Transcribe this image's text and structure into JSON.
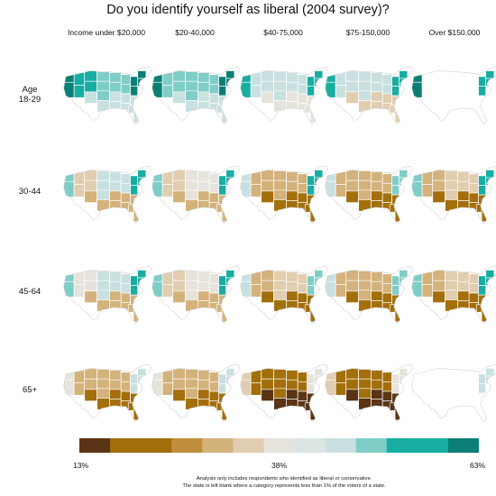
{
  "title": "Do you identify yourself as liberal (2004 survey)?",
  "income_groups": [
    "Income under $20,000",
    "$20-40,000",
    "$40-75,000",
    "$75-150,000",
    "Over $150,000"
  ],
  "age_groups": [
    {
      "line1": "Age",
      "line2": "18-29"
    },
    {
      "line1": "",
      "line2": "30-44"
    },
    {
      "line1": "",
      "line2": "45-64"
    },
    {
      "line1": "",
      "line2": "65+"
    }
  ],
  "legend": {
    "min_label": "13%",
    "mid_label": "38%",
    "max_label": "63%",
    "colors": [
      "#5a3414",
      "#a36f0b",
      "#a36f0b",
      "#bf8f3e",
      "#d4b27c",
      "#e1cdaf",
      "#e6e3dc",
      "#dbe5e4",
      "#c9e0e0",
      "#7fcdc7",
      "#17ada2",
      "#17ada2",
      "#0b7f76"
    ]
  },
  "palette": {
    "brown_dark": "#5a3414",
    "brown": "#a36f0b",
    "tan": "#d4b27c",
    "beige": "#e1cdaf",
    "grey": "#e6e3dc",
    "pale_teal": "#c9e0e0",
    "teal_light": "#7fcdc7",
    "teal": "#17ada2",
    "teal_dark": "#0b7f76",
    "blank": "#ffffff",
    "border": "#ffffff"
  },
  "notes": {
    "line1": "Analysis only includes respondents who identified as liberal or conservative.",
    "line2": "The state is left blank where a category represents less than 1% of the voters of a state."
  }
}
